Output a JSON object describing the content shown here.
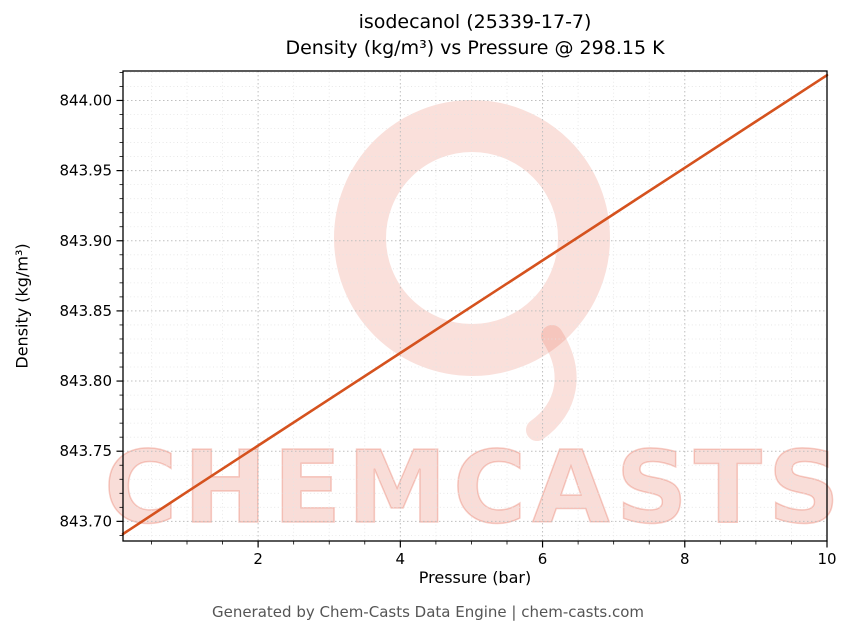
{
  "figure": {
    "background": "#ffffff"
  },
  "chart_data": {
    "type": "line",
    "title_line1": "isodecanol (25339-17-7)",
    "title_line2": "Density (kg/m³) vs Pressure @ 298.15 K",
    "xlabel": "Pressure (bar)",
    "ylabel": "Density (kg/m³)",
    "xlim": [
      0.1,
      10
    ],
    "ylim": [
      843.686,
      844.021
    ],
    "xticks": [
      2,
      4,
      6,
      8,
      10
    ],
    "xtick_labels": [
      "2",
      "4",
      "6",
      "8",
      "10"
    ],
    "yticks": [
      843.7,
      843.75,
      843.8,
      843.85,
      843.9,
      843.95,
      844.0
    ],
    "ytick_labels": [
      "843.70",
      "843.75",
      "843.80",
      "843.85",
      "843.90",
      "843.95",
      "844.00"
    ],
    "minor_x_step": 0.5,
    "minor_y_step": 0.01,
    "grid": true,
    "grid_major_color": "#bfbfbf",
    "grid_minor_color": "#e4e4e4",
    "series": [
      {
        "name": "density_vs_pressure",
        "color": "#d5521e",
        "x": [
          0.1,
          1,
          2,
          3,
          4,
          5,
          6,
          7,
          8,
          9,
          10
        ],
        "y": [
          843.691,
          843.721,
          843.754,
          843.787,
          843.82,
          843.853,
          843.886,
          843.919,
          843.952,
          843.985,
          844.018
        ]
      }
    ]
  },
  "watermark": {
    "text": "CHEMCASTS",
    "color": "#e2543a"
  },
  "footer": {
    "text": "Generated by Chem-Casts Data Engine | chem-casts.com"
  }
}
